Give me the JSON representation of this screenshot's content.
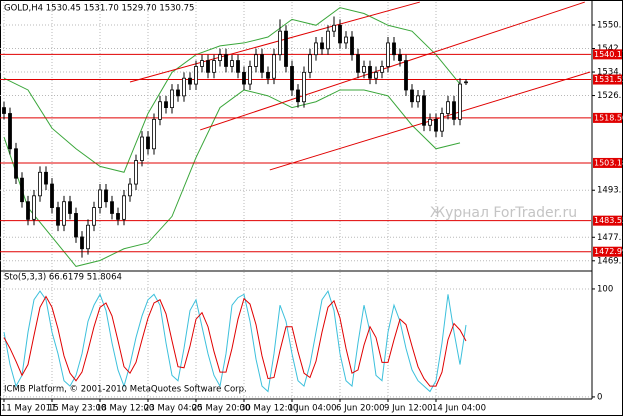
{
  "chart_data": [
    {
      "type": "candlestick",
      "header": "GOLD,H4  1530.45 1531.70 1529.70 1530.75",
      "watermark": "Журнал ForTrader.ru",
      "categories": [
        "11 May 2011",
        null,
        null,
        null,
        null,
        null,
        null,
        null,
        "15 May 23:00",
        null,
        null,
        null,
        null,
        null,
        null,
        null,
        "18 May 12:00",
        null,
        null,
        null,
        null,
        null,
        null,
        null,
        "23 May 04:00",
        null,
        null,
        null,
        null,
        null,
        null,
        null,
        "25 May 20:00",
        null,
        null,
        null,
        null,
        null,
        null,
        null,
        "30 May 12:00",
        null,
        null,
        null,
        null,
        null,
        null,
        null,
        "1 Jun 04:00",
        null,
        null,
        null,
        null,
        null,
        null,
        null,
        "6 Jun 20:00",
        null,
        null,
        null,
        null,
        null,
        null,
        null,
        "9 Jun 12:00",
        null,
        null,
        null,
        null,
        null,
        null,
        null,
        "14 Jun 04:00",
        null,
        null,
        null,
        null,
        null
      ],
      "open": [
        1522,
        1520,
        1508,
        1498,
        1490,
        1484,
        1492,
        1500,
        1496,
        1488,
        1482,
        1490,
        1486,
        1478,
        1474,
        1482,
        1488,
        1494,
        1490,
        1486,
        1484,
        1492,
        1496,
        1504,
        1512,
        1508,
        1518,
        1524,
        1522,
        1528,
        1526,
        1532,
        1530,
        1536,
        1538,
        1534,
        1538,
        1540,
        1536,
        1538,
        1534,
        1530,
        1536,
        1540,
        1534,
        1532,
        1540,
        1548,
        1536,
        1528,
        1524,
        1534,
        1540,
        1544,
        1542,
        1548,
        1550,
        1544,
        1546,
        1540,
        1534,
        1536,
        1532,
        1534,
        1536,
        1544,
        1540,
        1538,
        1528,
        1524,
        1526,
        1516,
        1518,
        1514,
        1520,
        1524,
        1518,
        1530.45
      ],
      "high": [
        1524,
        1522,
        1510,
        1500,
        1492,
        1494,
        1502,
        1502,
        1498,
        1490,
        1492,
        1492,
        1488,
        1480,
        1484,
        1490,
        1496,
        1496,
        1492,
        1488,
        1494,
        1498,
        1506,
        1514,
        1514,
        1520,
        1526,
        1526,
        1530,
        1530,
        1534,
        1534,
        1538,
        1540,
        1540,
        1540,
        1542,
        1542,
        1540,
        1540,
        1536,
        1538,
        1542,
        1542,
        1536,
        1542,
        1552,
        1550,
        1538,
        1530,
        1536,
        1542,
        1546,
        1546,
        1550,
        1553,
        1552,
        1548,
        1548,
        1542,
        1538,
        1538,
        1536,
        1538,
        1546,
        1546,
        1542,
        1540,
        1530,
        1528,
        1528,
        1520,
        1520,
        1522,
        1526,
        1526,
        1532,
        1531.7
      ],
      "low": [
        1518,
        1506,
        1496,
        1488,
        1482,
        1482,
        1490,
        1494,
        1486,
        1480,
        1480,
        1484,
        1476,
        1471,
        1472,
        1480,
        1486,
        1488,
        1484,
        1482,
        1482,
        1490,
        1494,
        1502,
        1506,
        1506,
        1516,
        1520,
        1520,
        1524,
        1524,
        1528,
        1528,
        1534,
        1532,
        1532,
        1536,
        1534,
        1534,
        1532,
        1528,
        1528,
        1534,
        1532,
        1530,
        1530,
        1538,
        1534,
        1526,
        1522,
        1522,
        1532,
        1538,
        1540,
        1540,
        1546,
        1542,
        1542,
        1538,
        1532,
        1532,
        1530,
        1530,
        1532,
        1534,
        1538,
        1536,
        1526,
        1522,
        1522,
        1514,
        1514,
        1512,
        1512,
        1518,
        1516,
        1516,
        1529.7
      ],
      "close": [
        1520,
        1508,
        1498,
        1490,
        1484,
        1492,
        1500,
        1496,
        1488,
        1482,
        1490,
        1486,
        1478,
        1474,
        1482,
        1488,
        1494,
        1490,
        1486,
        1484,
        1492,
        1496,
        1504,
        1512,
        1508,
        1518,
        1524,
        1522,
        1528,
        1526,
        1532,
        1530,
        1536,
        1538,
        1534,
        1538,
        1540,
        1536,
        1538,
        1534,
        1530,
        1536,
        1540,
        1534,
        1532,
        1540,
        1548,
        1536,
        1528,
        1524,
        1534,
        1540,
        1544,
        1542,
        1548,
        1550,
        1544,
        1546,
        1540,
        1534,
        1536,
        1532,
        1534,
        1536,
        1544,
        1540,
        1538,
        1528,
        1524,
        1526,
        1516,
        1518,
        1514,
        1520,
        1524,
        1518,
        1530,
        1530.75
      ],
      "up_color": "#ffffff",
      "down_color": "#000000",
      "ylim": [
        1466.77,
        1557.92
      ],
      "yticks": [
        {
          "value": 1550.1,
          "label": "1550.10"
        },
        {
          "value": 1542.1,
          "label": "1542.10"
        },
        {
          "value": 1534.1,
          "label": "1534.10"
        },
        {
          "value": 1526.1,
          "label": "1526.10"
        },
        {
          "value": 1493.9,
          "label": "1493.90"
        },
        {
          "value": 1477.9,
          "label": "1477.90"
        },
        {
          "value": 1469.9,
          "label": "1469.90"
        }
      ],
      "grid": true,
      "bands": {
        "color": "#3aa63a",
        "x": [
          0,
          4,
          8,
          12,
          16,
          20,
          24,
          28,
          32,
          36,
          40,
          44,
          48,
          52,
          56,
          60,
          64,
          68,
          72,
          76
        ],
        "upper": [
          1532,
          1528,
          1515,
          1508,
          1502,
          1500,
          1520,
          1534,
          1540,
          1543,
          1544,
          1546,
          1552,
          1550,
          1556,
          1554,
          1550,
          1548,
          1540,
          1530
        ],
        "lower": [
          1512,
          1488,
          1478,
          1468,
          1470,
          1474,
          1476,
          1485,
          1505,
          1522,
          1528,
          1526,
          1522,
          1524,
          1528,
          1528,
          1526,
          1516,
          1508,
          1510
        ]
      },
      "hlines": {
        "color": "#e00000",
        "values": [
          1540.11,
          1531.55,
          1518.5,
          1503.18,
          1483.55,
          1472.99
        ],
        "value_labels": [
          "1540.11",
          "1531.55",
          "1518.50",
          "1503.18",
          "1483.55",
          "1472.99"
        ]
      },
      "trendlines": {
        "color": "#e00000",
        "lines": [
          {
            "x": [
              21,
              69.3
            ],
            "y": [
              1530.7,
              1557.9
            ]
          },
          {
            "x": [
              32.7,
              96.8
            ],
            "y": [
              1514.4,
              1557.9
            ]
          },
          {
            "x": [
              44.3,
              97.7
            ],
            "y": [
              1500.8,
              1534.1
            ]
          }
        ]
      }
    },
    {
      "type": "line",
      "title": "Sto(5,3,3) 66.6179 51.8064",
      "footer": "ICMB Platform, © 2001-2010 MetaQuotes Software Corp.",
      "series": [
        {
          "color": "#3cc0dc",
          "values": [
            60,
            30,
            10,
            20,
            60,
            90,
            98,
            90,
            60,
            40,
            15,
            10,
            20,
            40,
            70,
            85,
            95,
            80,
            50,
            25,
            10,
            30,
            55,
            75,
            90,
            95,
            85,
            50,
            20,
            15,
            45,
            80,
            90,
            65,
            40,
            20,
            10,
            40,
            85,
            92,
            95,
            70,
            35,
            10,
            5,
            40,
            85,
            70,
            40,
            15,
            10,
            30,
            60,
            90,
            98,
            80,
            40,
            15,
            10,
            50,
            85,
            60,
            20,
            15,
            60,
            85,
            70,
            45,
            25,
            15,
            10,
            5,
            15,
            50,
            95,
            60,
            30,
            66.6179
          ]
        },
        {
          "color": "#e00000",
          "values": [
            55,
            45,
            33,
            20,
            30,
            57,
            83,
            93,
            83,
            63,
            38,
            22,
            15,
            23,
            43,
            65,
            83,
            87,
            75,
            52,
            28,
            22,
            32,
            53,
            73,
            87,
            90,
            77,
            52,
            28,
            27,
            47,
            72,
            78,
            65,
            42,
            23,
            23,
            45,
            72,
            91,
            86,
            67,
            38,
            17,
            18,
            43,
            65,
            65,
            42,
            22,
            18,
            33,
            60,
            83,
            89,
            73,
            45,
            22,
            25,
            48,
            65,
            55,
            32,
            32,
            53,
            72,
            67,
            47,
            28,
            17,
            10,
            10,
            23,
            53,
            68,
            62,
            51.8064
          ]
        }
      ],
      "ylim": [
        -1,
        115.7
      ],
      "yticks": [
        0,
        100
      ],
      "grid": true
    }
  ]
}
